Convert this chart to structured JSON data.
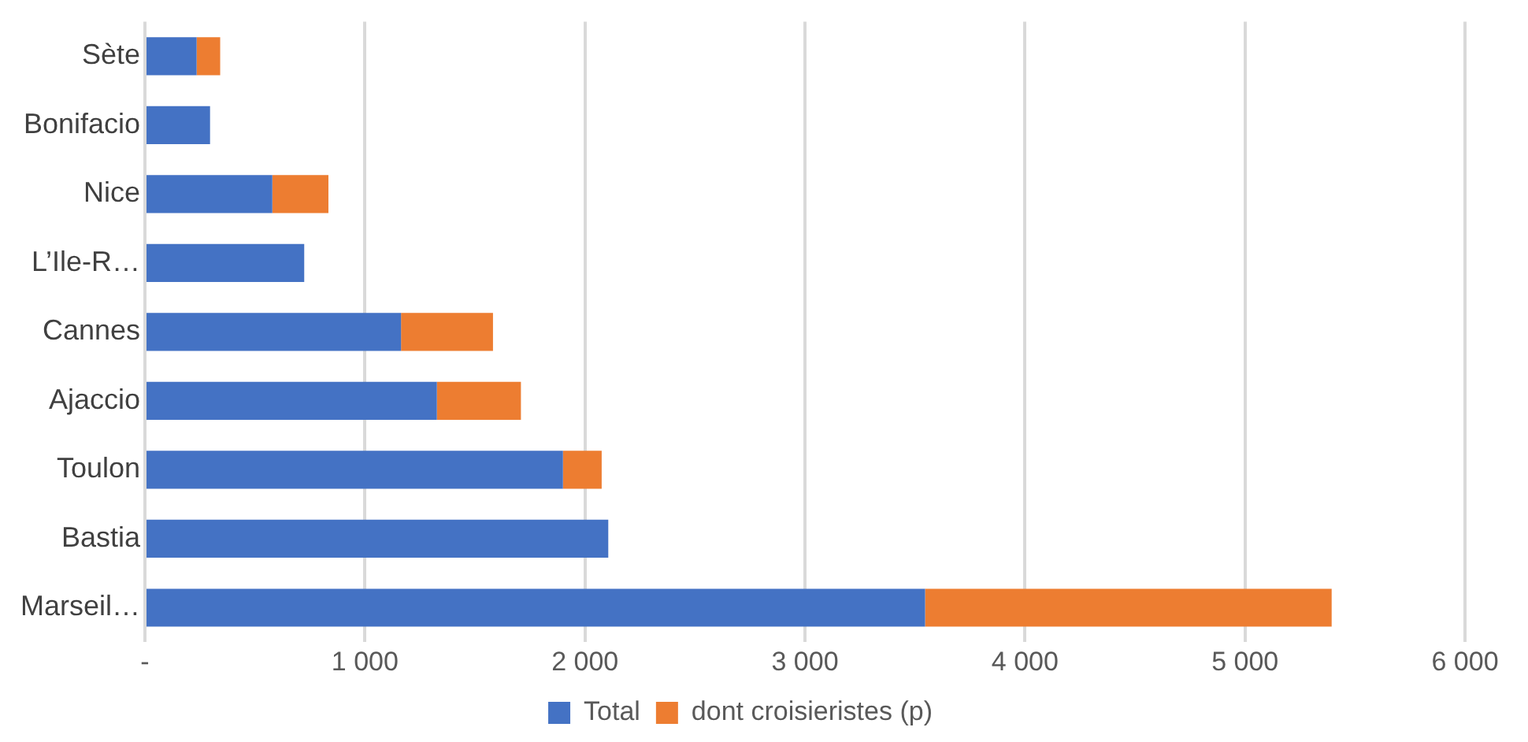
{
  "chart_data": {
    "type": "bar",
    "orientation": "horizontal",
    "stacked": true,
    "categories": [
      "Sète",
      "Bonifacio",
      "Nice",
      "L’Ile-R…",
      "Cannes",
      "Ajaccio",
      "Toulon",
      "Bastia",
      "Marseil…"
    ],
    "series": [
      {
        "name": "Total",
        "color": "#4472c4",
        "values": [
          235,
          296,
          579,
          724,
          1164,
          1327,
          1900,
          2106,
          3546
        ]
      },
      {
        "name": "dont croisieristes (p)",
        "color": "#ed7d31",
        "values": [
          107,
          null,
          255,
          null,
          418,
          382,
          176,
          null,
          1848
        ]
      }
    ],
    "xlim": [
      0,
      6000
    ],
    "xticks": [
      {
        "value": 0,
        "label": "-"
      },
      {
        "value": 1000,
        "label": "1 000"
      },
      {
        "value": 2000,
        "label": "2 000"
      },
      {
        "value": 3000,
        "label": "3 000"
      },
      {
        "value": 4000,
        "label": "4 000"
      },
      {
        "value": 5000,
        "label": "5 000"
      },
      {
        "value": 6000,
        "label": "6 000"
      }
    ],
    "grid": "x",
    "legend": "bottom"
  }
}
